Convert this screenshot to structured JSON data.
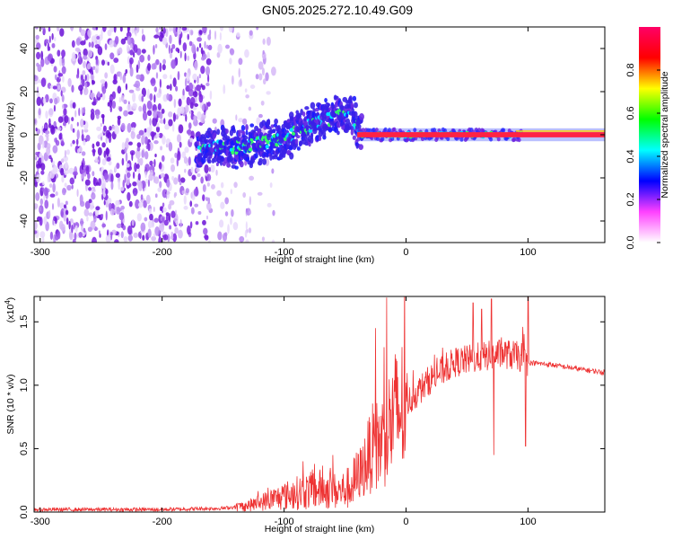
{
  "title": "GN05.2025.272.10.49.G09",
  "chart_data": [
    {
      "type": "heatmap",
      "xlabel": "Height of straight line (km)",
      "ylabel": "Frequency (Hz)",
      "xlim": [
        -305,
        163
      ],
      "ylim": [
        -50,
        50
      ],
      "xticks": [
        -300,
        -200,
        -100,
        0,
        100
      ],
      "yticks": [
        -40,
        -20,
        0,
        20,
        40
      ],
      "colorbar": {
        "label": "Normalized spectral amplitude",
        "range": [
          0,
          1
        ],
        "ticks": [
          "0.0",
          "0.2",
          "0.4",
          "0.6",
          "0.8"
        ],
        "tick_values": [
          0,
          0.2,
          0.4,
          0.6,
          0.8
        ],
        "stops": [
          "#ffffff",
          "#ff40ff",
          "#0000ff",
          "#00ffff",
          "#00ff00",
          "#ffff00",
          "#ff0000",
          "#ff0066"
        ]
      },
      "track_x": [
        -165,
        -140,
        -120,
        -100,
        -80,
        -60,
        -45,
        -38,
        -30,
        -10,
        20,
        60,
        90,
        163
      ],
      "track_y": [
        -6,
        -6,
        -4,
        -2,
        4,
        8,
        10,
        2,
        0,
        0,
        0,
        0,
        0,
        0
      ],
      "noise_region_x": [
        -305,
        -160
      ],
      "notes": "Low-amplitude purple noise speckle for height < -160 km; blue/cyan track drifting from ~-5 Hz to ~+10 Hz between -170 and -40 km; strong red line at ~0 Hz for height > -40 km."
    },
    {
      "type": "line",
      "xlabel": "Height of straight line (km)",
      "ylabel": "SNR (10 * v/v)",
      "yscale_label": "(x10",
      "yscale_exp": "4",
      "xlim": [
        -305,
        163
      ],
      "ylim": [
        0,
        1.7
      ],
      "xticks": [
        -300,
        -200,
        -100,
        0,
        100
      ],
      "yticks": [
        0,
        0.5,
        1.0,
        1.5
      ],
      "ytick_labels": [
        "0.0",
        "0.5",
        "1.0",
        "1.5"
      ],
      "color": "#ee3333",
      "envelope_x": [
        -305,
        -200,
        -150,
        -130,
        -110,
        -90,
        -70,
        -55,
        -45,
        -35,
        -28,
        -20,
        -10,
        0,
        20,
        40,
        60,
        80,
        95,
        100,
        120,
        140,
        163
      ],
      "envelope_y": [
        0.02,
        0.02,
        0.03,
        0.05,
        0.1,
        0.15,
        0.18,
        0.16,
        0.2,
        0.35,
        0.5,
        0.55,
        0.75,
        0.85,
        1.05,
        1.18,
        1.22,
        1.25,
        1.22,
        1.18,
        1.16,
        1.13,
        1.1
      ],
      "spikes": [
        {
          "x": -75,
          "y": 0.38
        },
        {
          "x": -60,
          "y": 0.45
        },
        {
          "x": -25,
          "y": 1.45
        },
        {
          "x": -18,
          "y": 1.3
        },
        {
          "x": 55,
          "y": 1.65
        },
        {
          "x": 62,
          "y": 1.6
        },
        {
          "x": 70,
          "y": 1.68
        },
        {
          "x": 72,
          "y": 0.45
        },
        {
          "x": 100,
          "y": 1.7
        },
        {
          "x": 98,
          "y": 0.52
        }
      ]
    }
  ]
}
